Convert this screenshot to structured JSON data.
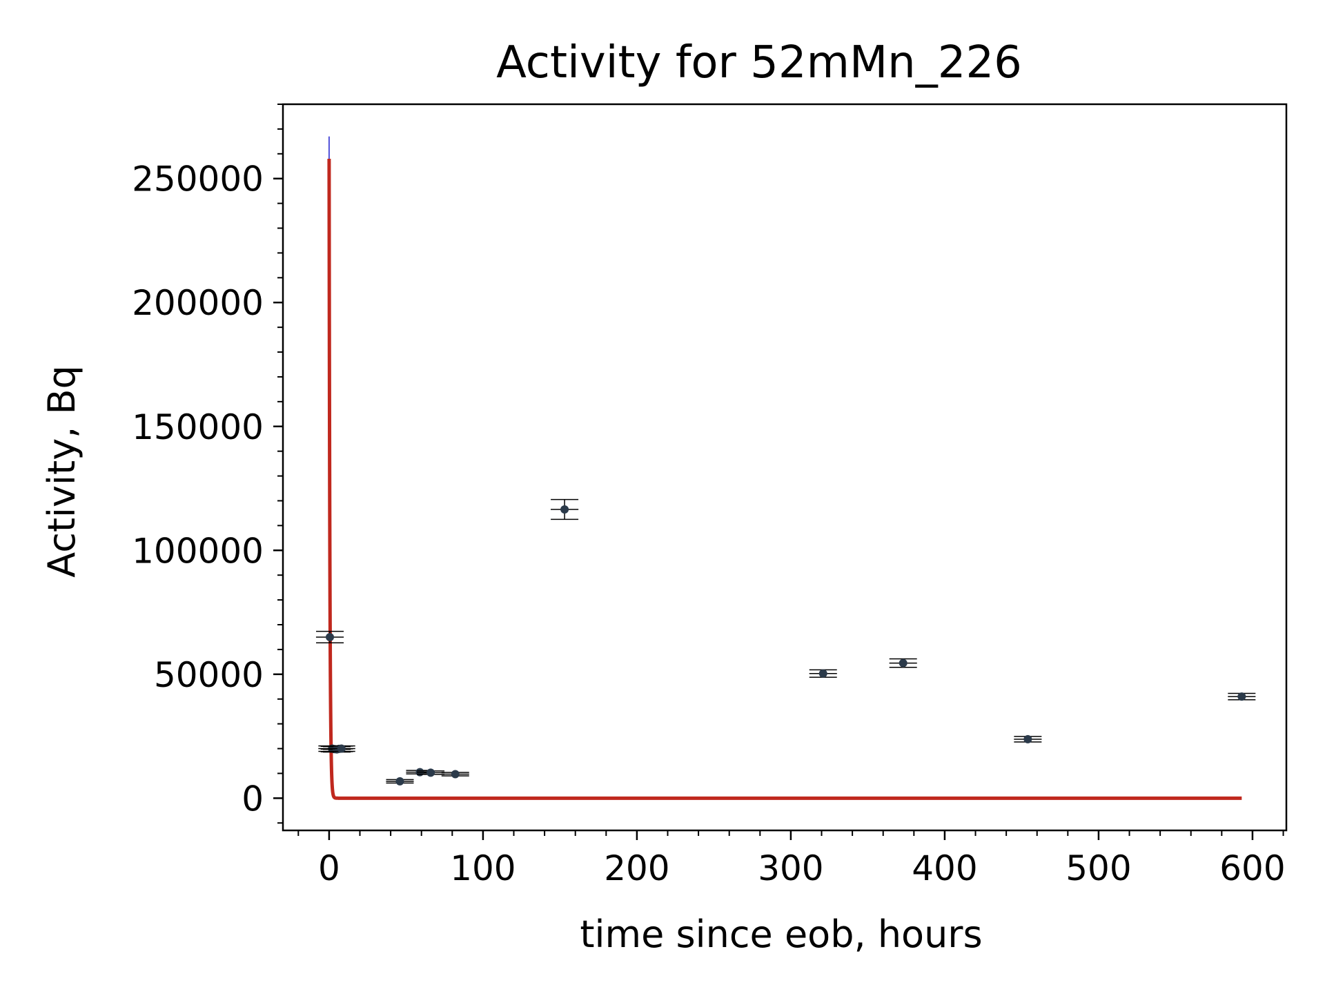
{
  "chart_data": {
    "type": "scatter",
    "title": "Activity for 52mMn_226",
    "xlabel": "time since eob, hours",
    "ylabel": "Activity, Bq",
    "xlim": [
      -30,
      622
    ],
    "ylim": [
      -13000,
      280000
    ],
    "xticks": [
      0,
      100,
      200,
      300,
      400,
      500,
      600
    ],
    "yticks": [
      0,
      50000,
      100000,
      150000,
      200000,
      250000
    ],
    "grid": false,
    "legend": "none",
    "colors": {
      "points": "#2b3a4a",
      "errorbars": "#000000",
      "fit": "#c0281e",
      "fit_uncertainty": "#1a1acc"
    },
    "points": [
      {
        "x": 0.5,
        "y": 65000,
        "yerr": 2300,
        "xerr": 9
      },
      {
        "x": 2,
        "y": 20000,
        "yerr": 1100,
        "xerr": 9
      },
      {
        "x": 3.5,
        "y": 19800,
        "yerr": 1100,
        "xerr": 9
      },
      {
        "x": 5,
        "y": 19700,
        "yerr": 1100,
        "xerr": 9
      },
      {
        "x": 6.5,
        "y": 19900,
        "yerr": 1100,
        "xerr": 9
      },
      {
        "x": 8,
        "y": 20000,
        "yerr": 1100,
        "xerr": 9
      },
      {
        "x": 46,
        "y": 6800,
        "yerr": 700,
        "xerr": 9
      },
      {
        "x": 59,
        "y": 10500,
        "yerr": 700,
        "xerr": 9
      },
      {
        "x": 66,
        "y": 10300,
        "yerr": 700,
        "xerr": 9
      },
      {
        "x": 82,
        "y": 9700,
        "yerr": 700,
        "xerr": 9
      },
      {
        "x": 153,
        "y": 116500,
        "yerr": 4000,
        "xerr": 9
      },
      {
        "x": 321,
        "y": 50300,
        "yerr": 1500,
        "xerr": 9
      },
      {
        "x": 373,
        "y": 54500,
        "yerr": 1700,
        "xerr": 9
      },
      {
        "x": 454,
        "y": 23800,
        "yerr": 1100,
        "xerr": 9
      },
      {
        "x": 593,
        "y": 41000,
        "yerr": 1300,
        "xerr": 9
      }
    ],
    "fit": {
      "A0": 258000,
      "half_life_hours": 0.35,
      "x_start": 0,
      "x_end": 593,
      "A0_upper": 267000
    }
  }
}
